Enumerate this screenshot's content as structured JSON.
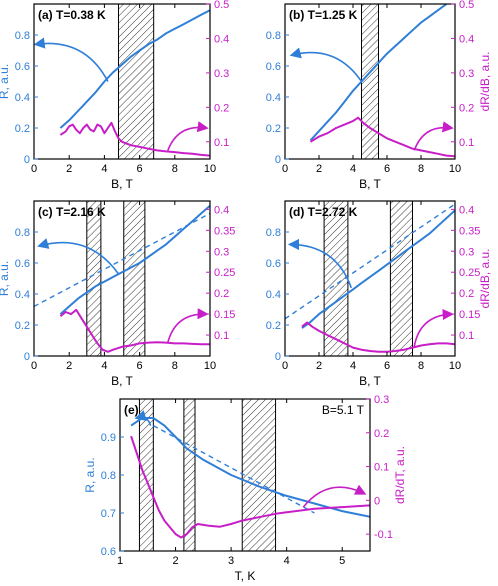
{
  "colors": {
    "blue": "#2f7fd8",
    "magenta": "#c81ec8",
    "axis": "#000000",
    "hatch": "#333333"
  },
  "chart_data": [
    {
      "type": "line",
      "label": "(a) T=0.38 K",
      "xlabel": "B, T",
      "ylabel_left": "R, a.u.",
      "ylabel_right": "",
      "xlim": [
        0,
        10
      ],
      "ylim_left": [
        0,
        1
      ],
      "ylim_right": [
        0.05,
        0.5
      ],
      "xticks": [
        0,
        2,
        4,
        6,
        8,
        10
      ],
      "yticks_left": [
        0,
        0.2,
        0.4,
        0.6,
        0.8
      ],
      "yticks_right": [
        0.1,
        0.2,
        0.3,
        0.4,
        0.5
      ],
      "hatch_regions": [
        [
          4.8,
          6.8
        ]
      ],
      "series": [
        {
          "axis": "left",
          "style": "solid",
          "x": [
            1.5,
            2,
            2.5,
            3,
            3.5,
            4,
            4.5,
            5,
            5.5,
            6,
            6.5,
            7,
            7.5,
            8,
            8.5,
            9,
            9.5,
            10
          ],
          "y": [
            0.2,
            0.25,
            0.31,
            0.37,
            0.43,
            0.5,
            0.56,
            0.61,
            0.66,
            0.7,
            0.74,
            0.77,
            0.81,
            0.84,
            0.87,
            0.9,
            0.93,
            0.96
          ]
        },
        {
          "axis": "right",
          "style": "solid",
          "x": [
            1.5,
            1.8,
            2.0,
            2.2,
            2.4,
            2.6,
            2.8,
            3.0,
            3.2,
            3.4,
            3.6,
            3.8,
            4.0,
            4.2,
            4.4,
            4.6,
            4.8,
            5.0,
            5.5,
            6.0,
            6.5,
            7.0,
            7.5,
            8.0,
            8.5,
            9.0,
            9.5,
            10.0
          ],
          "y": [
            0.12,
            0.13,
            0.145,
            0.15,
            0.135,
            0.125,
            0.14,
            0.15,
            0.135,
            0.13,
            0.15,
            0.145,
            0.125,
            0.14,
            0.155,
            0.13,
            0.11,
            0.1,
            0.09,
            0.085,
            0.08,
            0.075,
            0.072,
            0.07,
            0.067,
            0.065,
            0.062,
            0.06
          ]
        }
      ],
      "arrows": [
        {
          "axis": "left",
          "from": [
            4.2,
            0.5
          ],
          "to": [
            0.1,
            0.74
          ],
          "curve": 0.35
        },
        {
          "axis": "right",
          "from": [
            7.6,
            0.075
          ],
          "to": [
            9.8,
            0.14
          ],
          "curve": -0.4
        }
      ]
    },
    {
      "type": "line",
      "label": "(b) T=1.25 K",
      "xlabel": "B, T",
      "ylabel_left": "",
      "ylabel_right": "dR/dB, a.u.",
      "xlim": [
        0,
        10
      ],
      "ylim_left": [
        0,
        1
      ],
      "ylim_right": [
        0.05,
        0.5
      ],
      "xticks": [
        0,
        2,
        4,
        6,
        8,
        10
      ],
      "yticks_left": [
        0,
        0.2,
        0.4,
        0.6,
        0.8
      ],
      "yticks_right": [
        0.1,
        0.2,
        0.3,
        0.4,
        0.5
      ],
      "hatch_regions": [
        [
          4.5,
          5.5
        ]
      ],
      "series": [
        {
          "axis": "left",
          "style": "solid",
          "x": [
            1.5,
            2,
            2.5,
            3,
            3.5,
            4,
            4.5,
            5,
            5.5,
            6,
            6.5,
            7,
            7.5,
            8,
            8.5,
            9,
            9.5
          ],
          "y": [
            0.12,
            0.18,
            0.24,
            0.3,
            0.37,
            0.44,
            0.5,
            0.56,
            0.62,
            0.68,
            0.73,
            0.78,
            0.83,
            0.88,
            0.92,
            0.96,
            1.0
          ]
        },
        {
          "axis": "right",
          "style": "solid",
          "x": [
            1.5,
            2.0,
            2.5,
            3.0,
            3.5,
            4.0,
            4.3,
            4.6,
            5.0,
            5.5,
            6.0,
            6.5,
            7.0,
            7.5,
            8.0,
            8.5,
            9.0,
            9.5,
            10.0
          ],
          "y": [
            0.1,
            0.115,
            0.125,
            0.14,
            0.15,
            0.16,
            0.17,
            0.155,
            0.14,
            0.125,
            0.11,
            0.1,
            0.09,
            0.08,
            0.075,
            0.07,
            0.065,
            0.06,
            0.058
          ]
        }
      ],
      "arrows": [
        {
          "axis": "left",
          "from": [
            4.5,
            0.5
          ],
          "to": [
            0.4,
            0.67
          ],
          "curve": 0.35
        },
        {
          "axis": "right",
          "from": [
            7.6,
            0.075
          ],
          "to": [
            9.8,
            0.14
          ],
          "curve": -0.4
        }
      ]
    },
    {
      "type": "line",
      "label": "(c) T=2.16 K",
      "xlabel": "B, T",
      "ylabel_left": "R, a.u.",
      "ylabel_right": "",
      "xlim": [
        0,
        10
      ],
      "ylim_left": [
        0,
        1
      ],
      "ylim_right": [
        0.05,
        0.42
      ],
      "xticks": [
        0,
        2,
        4,
        6,
        8,
        10
      ],
      "yticks_left": [
        0,
        0.2,
        0.4,
        0.6,
        0.8
      ],
      "yticks_right": [
        0.1,
        0.15,
        0.2,
        0.25,
        0.3,
        0.35,
        0.4
      ],
      "hatch_regions": [
        [
          3.0,
          3.8
        ],
        [
          5.1,
          6.3
        ]
      ],
      "series": [
        {
          "axis": "left",
          "style": "solid",
          "x": [
            1.5,
            2,
            2.5,
            3,
            3.5,
            4,
            4.5,
            5,
            5.5,
            6,
            6.5,
            7,
            7.5,
            8,
            8.5,
            9,
            9.5,
            10
          ],
          "y": [
            0.27,
            0.32,
            0.37,
            0.41,
            0.45,
            0.48,
            0.51,
            0.54,
            0.57,
            0.6,
            0.64,
            0.68,
            0.72,
            0.77,
            0.82,
            0.87,
            0.92,
            0.97
          ]
        },
        {
          "axis": "left",
          "style": "dashed",
          "x": [
            0,
            10
          ],
          "y": [
            0.32,
            0.92
          ]
        },
        {
          "axis": "right",
          "style": "solid",
          "x": [
            1.5,
            1.8,
            2.1,
            2.4,
            2.7,
            3.0,
            3.3,
            3.6,
            3.9,
            4.2,
            4.5,
            5.0,
            5.5,
            6.0,
            6.5,
            7.0,
            7.5,
            8.0,
            8.5,
            9.0,
            9.5,
            10.0
          ],
          "y": [
            0.145,
            0.155,
            0.15,
            0.16,
            0.14,
            0.12,
            0.1,
            0.08,
            0.065,
            0.06,
            0.065,
            0.072,
            0.075,
            0.08,
            0.082,
            0.083,
            0.082,
            0.08,
            0.08,
            0.079,
            0.078,
            0.078
          ]
        }
      ],
      "arrows": [
        {
          "axis": "left",
          "from": [
            4.8,
            0.53
          ],
          "to": [
            0.3,
            0.71
          ],
          "curve": 0.35
        },
        {
          "axis": "right",
          "from": [
            7.6,
            0.082
          ],
          "to": [
            9.8,
            0.15
          ],
          "curve": -0.4
        }
      ]
    },
    {
      "type": "line",
      "label": "(d) T=2.72 K",
      "xlabel": "B, T",
      "ylabel_left": "",
      "ylabel_right": "dR/dB, a.u.",
      "xlim": [
        0,
        10
      ],
      "ylim_left": [
        0,
        1
      ],
      "ylim_right": [
        0.05,
        0.42
      ],
      "xticks": [
        0,
        2,
        4,
        6,
        8,
        10
      ],
      "yticks_left": [
        0,
        0.2,
        0.4,
        0.6,
        0.8
      ],
      "yticks_right": [
        0.1,
        0.15,
        0.2,
        0.25,
        0.3,
        0.35,
        0.4
      ],
      "hatch_regions": [
        [
          2.3,
          3.7
        ],
        [
          6.2,
          7.5
        ]
      ],
      "series": [
        {
          "axis": "left",
          "style": "solid",
          "x": [
            1.0,
            1.5,
            2,
            2.5,
            3,
            3.5,
            4,
            4.5,
            5,
            5.5,
            6,
            6.5,
            7,
            7.5,
            8,
            8.5,
            9,
            9.5,
            10
          ],
          "y": [
            0.18,
            0.22,
            0.27,
            0.31,
            0.35,
            0.39,
            0.43,
            0.47,
            0.51,
            0.55,
            0.59,
            0.63,
            0.67,
            0.71,
            0.75,
            0.79,
            0.84,
            0.89,
            0.94
          ]
        },
        {
          "axis": "left",
          "style": "dashed",
          "x": [
            0,
            10
          ],
          "y": [
            0.24,
            0.98
          ]
        },
        {
          "axis": "right",
          "style": "solid",
          "x": [
            1.0,
            1.3,
            1.6,
            2.0,
            2.5,
            3.0,
            3.5,
            4.0,
            4.5,
            5.0,
            5.5,
            6.0,
            6.5,
            7.0,
            7.5,
            8.0,
            8.5,
            9.0,
            9.5,
            10.0
          ],
          "y": [
            0.12,
            0.13,
            0.12,
            0.11,
            0.1,
            0.09,
            0.08,
            0.07,
            0.065,
            0.062,
            0.06,
            0.06,
            0.062,
            0.065,
            0.07,
            0.075,
            0.078,
            0.08,
            0.08,
            0.078
          ]
        }
      ],
      "arrows": [
        {
          "axis": "left",
          "from": [
            3.9,
            0.44
          ],
          "to": [
            0.3,
            0.72
          ],
          "curve": 0.35
        },
        {
          "axis": "right",
          "from": [
            7.6,
            0.072
          ],
          "to": [
            9.8,
            0.15
          ],
          "curve": -0.4
        }
      ]
    },
    {
      "type": "line",
      "label": "(e)",
      "annotation": "B=5.1 T",
      "xlabel": "T, K",
      "ylabel_left": "R, a.u.",
      "ylabel_right": "dR/dT, a.u.",
      "xlim": [
        1,
        5.5
      ],
      "ylim_left": [
        0.6,
        1.0
      ],
      "ylim_right": [
        -0.15,
        0.3
      ],
      "xticks": [
        1,
        2,
        3,
        4,
        5
      ],
      "yticks_left": [
        0.6,
        0.7,
        0.8,
        0.9
      ],
      "yticks_right": [
        -0.1,
        0,
        0.1,
        0.2,
        0.3
      ],
      "hatch_regions": [
        [
          1.35,
          1.6
        ],
        [
          2.15,
          2.35
        ],
        [
          3.2,
          3.8
        ]
      ],
      "series": [
        {
          "axis": "left",
          "style": "solid",
          "x": [
            1.2,
            1.4,
            1.6,
            1.8,
            2.0,
            2.2,
            2.5,
            3.0,
            3.5,
            4.0,
            4.5,
            5.0,
            5.5
          ],
          "y": [
            0.93,
            0.95,
            0.95,
            0.93,
            0.9,
            0.87,
            0.84,
            0.8,
            0.77,
            0.745,
            0.725,
            0.705,
            0.69
          ]
        },
        {
          "axis": "left",
          "style": "dashed",
          "x": [
            1.6,
            4.5
          ],
          "y": [
            0.93,
            0.7
          ]
        },
        {
          "axis": "right",
          "style": "solid",
          "x": [
            1.2,
            1.3,
            1.4,
            1.5,
            1.6,
            1.7,
            1.8,
            1.9,
            2.0,
            2.1,
            2.2,
            2.3,
            2.4,
            2.6,
            2.8,
            3.0,
            3.2,
            3.5,
            3.8,
            4.0,
            4.5,
            5.0,
            5.5
          ],
          "y": [
            0.19,
            0.14,
            0.09,
            0.05,
            0.01,
            -0.03,
            -0.06,
            -0.08,
            -0.1,
            -0.11,
            -0.1,
            -0.08,
            -0.07,
            -0.075,
            -0.078,
            -0.07,
            -0.06,
            -0.05,
            -0.04,
            -0.035,
            -0.025,
            -0.02,
            -0.015
          ]
        }
      ],
      "arrows": [
        {
          "axis": "left",
          "from": [
            1.55,
            0.93
          ],
          "to": [
            1.3,
            0.95
          ],
          "curve": 0.5
        },
        {
          "axis": "right",
          "from": [
            4.3,
            -0.02
          ],
          "to": [
            5.4,
            0.02
          ],
          "curve": -0.4
        }
      ]
    }
  ]
}
